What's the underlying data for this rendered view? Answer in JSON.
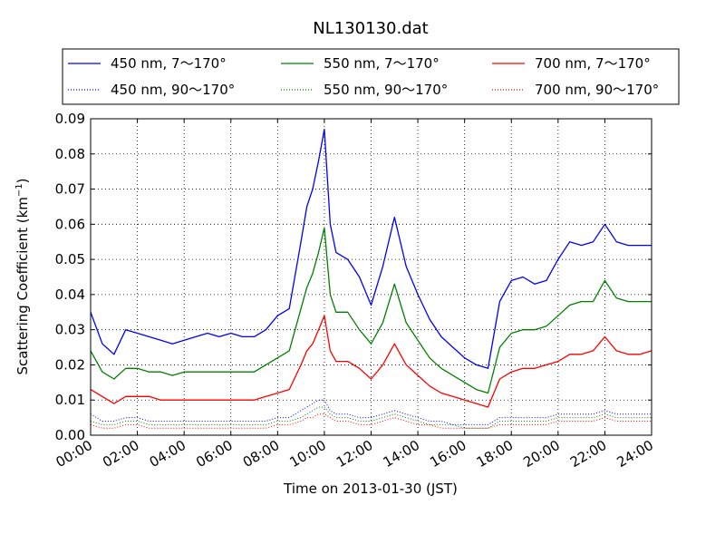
{
  "chart_data": {
    "type": "line",
    "title": "NL130130.dat",
    "xlabel": "Time on 2013-01-30 (JST)",
    "ylabel_main": "Scattering Coefficient (km",
    "ylabel_sup": "−1",
    "ylabel_close": ")",
    "xlim": [
      0,
      24
    ],
    "ylim": [
      0,
      0.09
    ],
    "grid": true,
    "legend_position": "top",
    "x_ticks": [
      {
        "value": 0,
        "label": "00:00"
      },
      {
        "value": 2,
        "label": "02:00"
      },
      {
        "value": 4,
        "label": "04:00"
      },
      {
        "value": 6,
        "label": "06:00"
      },
      {
        "value": 8,
        "label": "08:00"
      },
      {
        "value": 10,
        "label": "10:00"
      },
      {
        "value": 12,
        "label": "12:00"
      },
      {
        "value": 14,
        "label": "14:00"
      },
      {
        "value": 16,
        "label": "16:00"
      },
      {
        "value": 18,
        "label": "18:00"
      },
      {
        "value": 20,
        "label": "20:00"
      },
      {
        "value": 22,
        "label": "22:00"
      },
      {
        "value": 24,
        "label": "24:00"
      }
    ],
    "y_ticks": [
      {
        "value": 0.0,
        "label": "0.00"
      },
      {
        "value": 0.01,
        "label": "0.01"
      },
      {
        "value": 0.02,
        "label": "0.02"
      },
      {
        "value": 0.03,
        "label": "0.03"
      },
      {
        "value": 0.04,
        "label": "0.04"
      },
      {
        "value": 0.05,
        "label": "0.05"
      },
      {
        "value": 0.06,
        "label": "0.06"
      },
      {
        "value": 0.07,
        "label": "0.07"
      },
      {
        "value": 0.08,
        "label": "0.08"
      },
      {
        "value": 0.09,
        "label": "0.09"
      }
    ],
    "x": [
      0,
      0.5,
      1,
      1.5,
      2,
      2.5,
      3,
      3.5,
      4,
      4.5,
      5,
      5.5,
      6,
      6.5,
      7,
      7.5,
      8,
      8.5,
      9,
      9.25,
      9.5,
      9.75,
      10,
      10.25,
      10.5,
      11,
      11.5,
      12,
      12.5,
      13,
      13.5,
      14,
      14.5,
      15,
      15.5,
      16,
      16.5,
      17,
      17.5,
      18,
      18.5,
      19,
      19.5,
      20,
      20.5,
      21,
      21.5,
      22,
      22.5,
      23,
      23.5,
      24
    ],
    "series": [
      {
        "name": "450 nm, 7～170°",
        "color": "#0000ff",
        "dash": "solid",
        "values": [
          0.035,
          0.026,
          0.023,
          0.03,
          0.029,
          0.028,
          0.027,
          0.026,
          0.027,
          0.028,
          0.029,
          0.028,
          0.029,
          0.028,
          0.028,
          0.03,
          0.034,
          0.036,
          0.055,
          0.065,
          0.07,
          0.078,
          0.087,
          0.06,
          0.052,
          0.05,
          0.045,
          0.037,
          0.048,
          0.062,
          0.048,
          0.04,
          0.033,
          0.028,
          0.025,
          0.022,
          0.02,
          0.019,
          0.038,
          0.044,
          0.045,
          0.043,
          0.044,
          0.05,
          0.055,
          0.054,
          0.055,
          0.06,
          0.055,
          0.054,
          0.054,
          0.054
        ]
      },
      {
        "name": "550 nm, 7～170°",
        "color": "#008000",
        "dash": "solid",
        "values": [
          0.024,
          0.018,
          0.016,
          0.019,
          0.019,
          0.018,
          0.018,
          0.017,
          0.018,
          0.018,
          0.018,
          0.018,
          0.018,
          0.018,
          0.018,
          0.02,
          0.022,
          0.024,
          0.036,
          0.042,
          0.046,
          0.052,
          0.059,
          0.04,
          0.035,
          0.035,
          0.03,
          0.026,
          0.032,
          0.043,
          0.032,
          0.027,
          0.022,
          0.019,
          0.017,
          0.015,
          0.013,
          0.012,
          0.025,
          0.029,
          0.03,
          0.03,
          0.031,
          0.034,
          0.037,
          0.038,
          0.038,
          0.044,
          0.039,
          0.038,
          0.038,
          0.038
        ]
      },
      {
        "name": "700 nm, 7～170°",
        "color": "#ff0000",
        "dash": "solid",
        "values": [
          0.013,
          0.011,
          0.009,
          0.011,
          0.011,
          0.011,
          0.01,
          0.01,
          0.01,
          0.01,
          0.01,
          0.01,
          0.01,
          0.01,
          0.01,
          0.011,
          0.012,
          0.013,
          0.02,
          0.024,
          0.026,
          0.03,
          0.034,
          0.024,
          0.021,
          0.021,
          0.019,
          0.016,
          0.02,
          0.026,
          0.02,
          0.017,
          0.014,
          0.012,
          0.011,
          0.01,
          0.009,
          0.008,
          0.016,
          0.018,
          0.019,
          0.019,
          0.02,
          0.021,
          0.023,
          0.023,
          0.024,
          0.028,
          0.024,
          0.023,
          0.023,
          0.024
        ]
      },
      {
        "name": "450 nm, 90～170°",
        "color": "#0000ff",
        "dash": "dotted",
        "values": [
          0.006,
          0.004,
          0.004,
          0.005,
          0.005,
          0.004,
          0.004,
          0.004,
          0.004,
          0.004,
          0.004,
          0.004,
          0.004,
          0.004,
          0.004,
          0.004,
          0.005,
          0.005,
          0.007,
          0.008,
          0.009,
          0.01,
          0.01,
          0.007,
          0.006,
          0.006,
          0.005,
          0.005,
          0.006,
          0.007,
          0.006,
          0.005,
          0.004,
          0.004,
          0.003,
          0.003,
          0.003,
          0.003,
          0.005,
          0.005,
          0.005,
          0.005,
          0.005,
          0.006,
          0.006,
          0.006,
          0.006,
          0.007,
          0.006,
          0.006,
          0.006,
          0.006
        ]
      },
      {
        "name": "550 nm, 90～170°",
        "color": "#008000",
        "dash": "dotted",
        "values": [
          0.004,
          0.003,
          0.003,
          0.004,
          0.004,
          0.003,
          0.003,
          0.003,
          0.003,
          0.003,
          0.003,
          0.003,
          0.003,
          0.003,
          0.003,
          0.003,
          0.004,
          0.004,
          0.005,
          0.006,
          0.007,
          0.008,
          0.008,
          0.006,
          0.005,
          0.005,
          0.004,
          0.004,
          0.005,
          0.006,
          0.005,
          0.004,
          0.003,
          0.003,
          0.003,
          0.002,
          0.002,
          0.002,
          0.004,
          0.004,
          0.004,
          0.004,
          0.004,
          0.005,
          0.005,
          0.005,
          0.005,
          0.006,
          0.005,
          0.005,
          0.005,
          0.005
        ]
      },
      {
        "name": "700 nm, 90～170°",
        "color": "#ff0000",
        "dash": "dotted",
        "values": [
          0.003,
          0.002,
          0.002,
          0.003,
          0.003,
          0.002,
          0.002,
          0.002,
          0.002,
          0.002,
          0.002,
          0.002,
          0.002,
          0.002,
          0.002,
          0.002,
          0.003,
          0.003,
          0.004,
          0.005,
          0.005,
          0.006,
          0.006,
          0.005,
          0.004,
          0.004,
          0.003,
          0.003,
          0.004,
          0.005,
          0.004,
          0.003,
          0.003,
          0.002,
          0.002,
          0.002,
          0.002,
          0.002,
          0.003,
          0.003,
          0.003,
          0.003,
          0.003,
          0.004,
          0.004,
          0.004,
          0.004,
          0.005,
          0.004,
          0.004,
          0.004,
          0.004
        ]
      }
    ]
  }
}
